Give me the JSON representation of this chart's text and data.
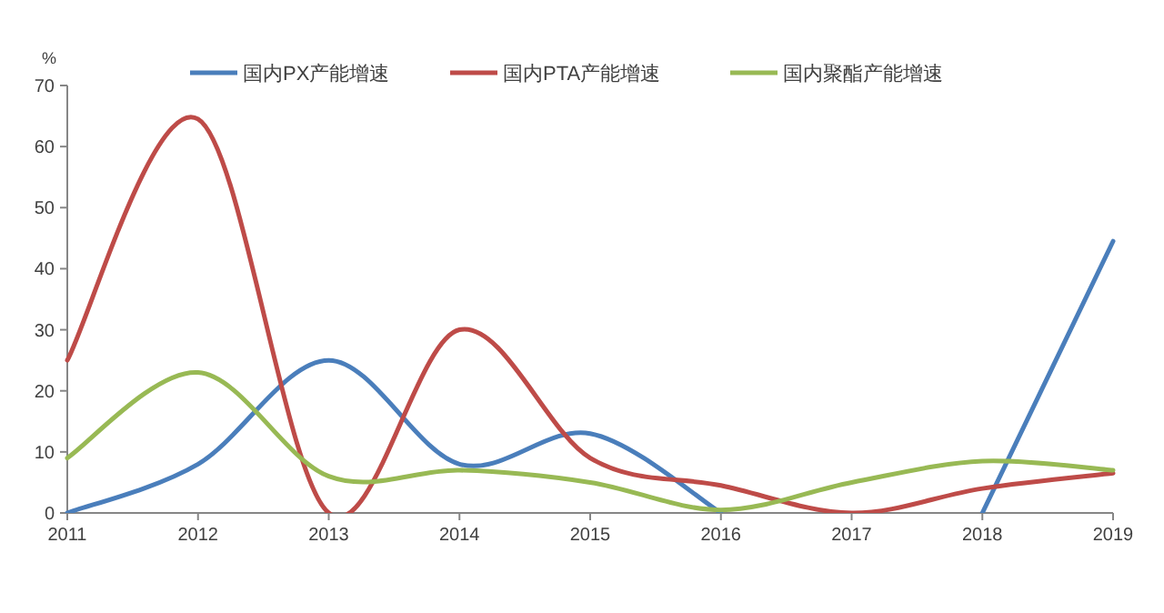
{
  "chart_data": {
    "type": "line",
    "ylabel": "%",
    "categories": [
      "2011",
      "2012",
      "2013",
      "2014",
      "2015",
      "2016",
      "2017",
      "2018",
      "2019"
    ],
    "ylim": [
      0,
      70
    ],
    "yticks": [
      0,
      10,
      20,
      30,
      40,
      50,
      60,
      70
    ],
    "legend": "top",
    "grid": false,
    "marker": "none",
    "line_style": "solid",
    "series": [
      {
        "name": "国内PX产能增速",
        "color": "#4a7ebb",
        "values": [
          0,
          8,
          25,
          8,
          13,
          0,
          null,
          0,
          44.5
        ]
      },
      {
        "name": "国内PTA产能增速",
        "color": "#be4b48",
        "values": [
          25,
          64.5,
          0,
          30,
          9,
          4.5,
          0,
          4,
          6.5
        ]
      },
      {
        "name": "国内聚酯产能增速",
        "color": "#98b954",
        "values": [
          9,
          23,
          6,
          7,
          5,
          0.5,
          5,
          8.5,
          7
        ]
      }
    ]
  }
}
